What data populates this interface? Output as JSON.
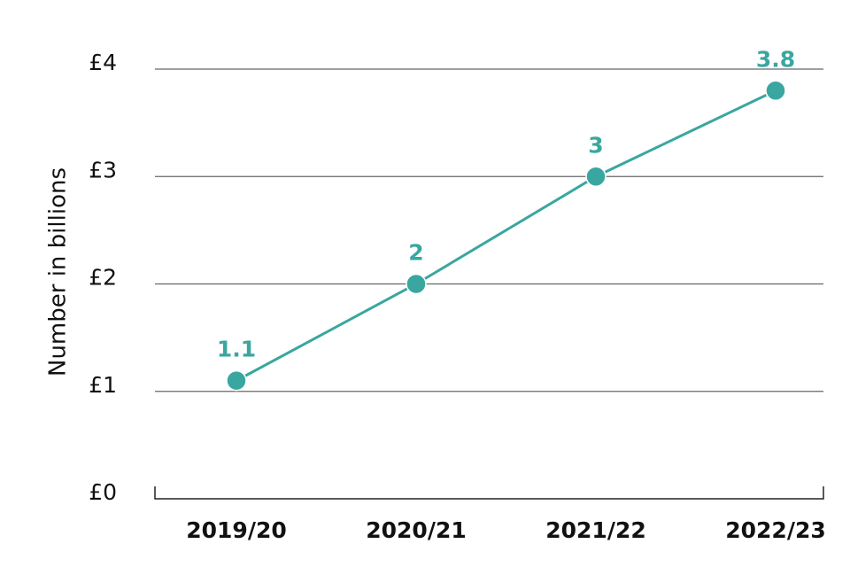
{
  "chart_data": {
    "type": "line",
    "y_label": "Number in billions",
    "categories": [
      "2019/20",
      "2020/21",
      "2021/22",
      "2022/23"
    ],
    "series": [
      {
        "name": "Number in billions",
        "color": "#3aa6a0",
        "values": [
          1.1,
          2,
          3,
          3.8
        ]
      }
    ],
    "ylim": [
      0,
      4
    ],
    "yticks": [
      {
        "value": 0,
        "label": "£0"
      },
      {
        "value": 1,
        "label": "£1"
      },
      {
        "value": 2,
        "label": "£2"
      },
      {
        "value": 3,
        "label": "£3"
      },
      {
        "value": 4,
        "label": "£4"
      }
    ],
    "grid": true
  }
}
